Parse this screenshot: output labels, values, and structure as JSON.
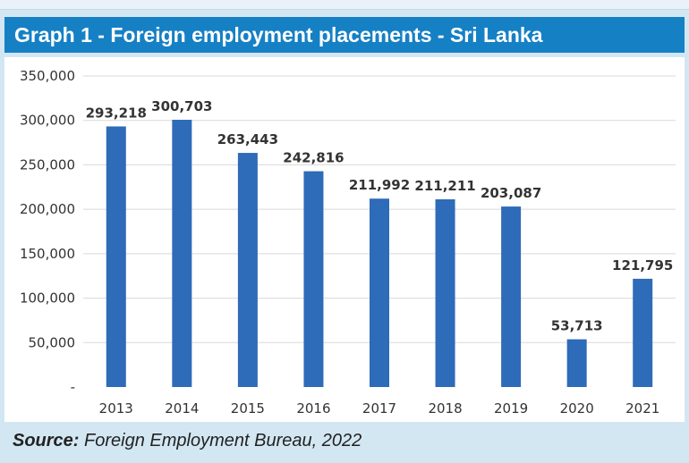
{
  "header": {
    "title": "Graph 1 - Foreign employment placements - Sri Lanka"
  },
  "source": {
    "label": "Source:",
    "text": "Foreign Employment Bureau, 2022"
  },
  "colors": {
    "title_bg": "#1680c5",
    "bar": "#2e6bb8",
    "panel": "#d3e7f3"
  },
  "chart_data": {
    "type": "bar",
    "title": "Graph 1 - Foreign employment placements - Sri Lanka",
    "xlabel": "",
    "ylabel": "",
    "categories": [
      "2013",
      "2014",
      "2015",
      "2016",
      "2017",
      "2018",
      "2019",
      "2020",
      "2021"
    ],
    "values": [
      293218,
      300703,
      263443,
      242816,
      211992,
      211211,
      203087,
      53713,
      121795
    ],
    "data_labels": [
      "293,218",
      "300,703",
      "263,443",
      "242,816",
      "211,992",
      "211,211",
      "203,087",
      "53,713",
      "121,795"
    ],
    "yticks": [
      0,
      50000,
      100000,
      150000,
      200000,
      250000,
      300000,
      350000
    ],
    "ytick_labels": [
      "-",
      "50,000",
      "100,000",
      "150,000",
      "200,000",
      "250,000",
      "300,000",
      "350,000"
    ],
    "ylim": [
      0,
      350000
    ],
    "grid": true,
    "legend": "none"
  }
}
